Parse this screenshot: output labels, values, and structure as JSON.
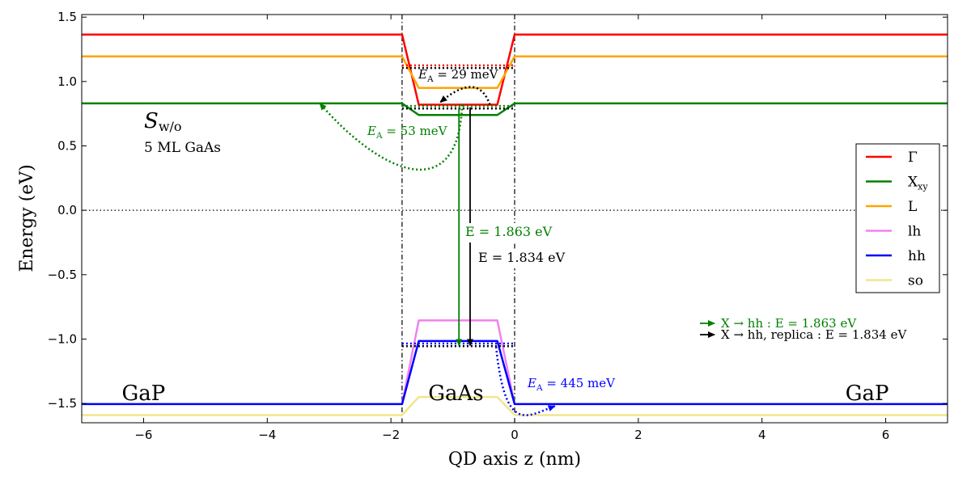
{
  "chart_data": {
    "type": "line",
    "title": "",
    "xlabel": "QD axis z (nm)",
    "ylabel": "Energy (eV)",
    "xlim": [
      -7,
      7
    ],
    "ylim": [
      -1.65,
      1.52
    ],
    "xticks": [
      -6,
      -4,
      -2,
      0,
      2,
      4,
      6
    ],
    "xtick_labels": [
      "−6",
      "−4",
      "−2",
      "0",
      "2",
      "4",
      "6"
    ],
    "yticks": [
      1.5,
      1.0,
      0.5,
      0.0,
      -0.5,
      -1.0,
      -1.5
    ],
    "ytick_labels": [
      "1.5",
      "1.0",
      "0.5",
      "0.0",
      "−0.5",
      "−1.0",
      "−1.5"
    ],
    "grid": false,
    "legend_position": "right",
    "series": [
      {
        "name": "Γ",
        "color": "#ff0000",
        "x": [
          -7,
          -1.82,
          -1.55,
          -0.28,
          0,
          7
        ],
        "y": [
          1.365,
          1.365,
          0.82,
          0.82,
          1.365,
          1.365
        ]
      },
      {
        "name": "Xₓᵧ",
        "legend_main": "X",
        "legend_sub": "xy",
        "color": "#008000",
        "x": [
          -7,
          -1.82,
          -1.55,
          -0.28,
          0,
          7
        ],
        "y": [
          0.83,
          0.83,
          0.74,
          0.74,
          0.83,
          0.83
        ]
      },
      {
        "name": "L",
        "color": "#ffa500",
        "x": [
          -7,
          -1.82,
          -1.55,
          -0.28,
          0,
          7
        ],
        "y": [
          1.195,
          1.195,
          0.95,
          0.95,
          1.195,
          1.195
        ]
      },
      {
        "name": "lh",
        "color": "#ee82ee",
        "x": [
          -1.82,
          -1.55,
          -0.28,
          0
        ],
        "y": [
          -1.505,
          -0.855,
          -0.855,
          -1.505
        ]
      },
      {
        "name": "hh",
        "color": "#0000ff",
        "x": [
          -7,
          -1.82,
          -1.55,
          -0.28,
          0,
          7
        ],
        "y": [
          -1.505,
          -1.505,
          -1.015,
          -1.015,
          -1.505,
          -1.505
        ]
      },
      {
        "name": "so",
        "color": "#f0e68c",
        "x": [
          -7,
          -1.82,
          -1.55,
          -0.28,
          0,
          7
        ],
        "y": [
          -1.59,
          -1.59,
          -1.45,
          -1.45,
          -1.59,
          -1.59
        ]
      }
    ],
    "reference_lines": [
      {
        "kind": "hline",
        "y": 0.0,
        "color": "#000000",
        "style": "dotted"
      },
      {
        "kind": "vline",
        "x": -1.82,
        "color": "#000000",
        "style": "dashdot"
      },
      {
        "kind": "vline",
        "x": 0.0,
        "color": "#000000",
        "style": "dashdot"
      }
    ],
    "levels": [
      {
        "color": "#ff0000",
        "x": [
          -1.82,
          0
        ],
        "y": 1.125
      },
      {
        "color": "#000000",
        "x": [
          -1.82,
          0
        ],
        "y": 1.105
      },
      {
        "color": "#008000",
        "x": [
          -1.82,
          0
        ],
        "y": 0.81
      },
      {
        "color": "#000000",
        "x": [
          -1.82,
          0
        ],
        "y": 0.79
      },
      {
        "color": "#0000ff",
        "x": [
          -1.82,
          0
        ],
        "y": -1.035
      },
      {
        "color": "#000000",
        "x": [
          -1.82,
          0
        ],
        "y": -1.055
      }
    ],
    "transitions": [
      {
        "color": "#008000",
        "x": -0.9,
        "y_from": 0.8,
        "y_to": -1.05
      },
      {
        "color": "#000000",
        "x": -0.72,
        "y_from": 0.8,
        "y_to": -1.05
      }
    ],
    "activation_paths": [
      {
        "color": "#000000",
        "points": [
          [
            -0.4,
            0.82
          ],
          [
            -0.55,
            1.02
          ],
          [
            -0.85,
            0.98
          ],
          [
            -1.2,
            0.84
          ]
        ],
        "arrow": "end"
      },
      {
        "color": "#008000",
        "points": [
          [
            -0.85,
            0.82
          ],
          [
            -0.9,
            0.05
          ],
          [
            -2.1,
            0.25
          ],
          [
            -3.15,
            0.83
          ]
        ],
        "arrow": "end"
      },
      {
        "color": "#0000ff",
        "points": [
          [
            -0.3,
            -1.06
          ],
          [
            -0.15,
            -1.75
          ],
          [
            0.2,
            -1.6
          ],
          [
            0.65,
            -1.52
          ]
        ],
        "arrow": "end"
      }
    ],
    "annotations": {
      "gap_left": {
        "text": "GaP",
        "x": -6.0,
        "y": -1.36
      },
      "gaas": {
        "text": "GaAs",
        "x": -0.95,
        "y": -1.36
      },
      "gap_right": {
        "text": "GaP",
        "x": 5.7,
        "y": -1.36
      },
      "sample_main": "S",
      "sample_sub": "w/o",
      "sample_desc": "5 ML GaAs",
      "ea_29": {
        "prefix": "E",
        "sub": "A",
        "value": " = 29 meV",
        "color": "#000000"
      },
      "ea_53": {
        "prefix": "E",
        "sub": "A",
        "value": " = 53 meV",
        "color": "#008000"
      },
      "ea_445": {
        "prefix": "E",
        "sub": "A",
        "value": " = 445 meV",
        "color": "#0000ff"
      },
      "e_green": {
        "text": "E = 1.863 eV",
        "color": "#008000"
      },
      "e_black": {
        "text": "E = 1.834 eV",
        "color": "#000000"
      },
      "trans_legend_1": {
        "text": "X → hh : E = 1.863 eV",
        "color": "#008000"
      },
      "trans_legend_2": {
        "text": "X → hh, replica : E = 1.834 eV",
        "color": "#000000"
      }
    }
  }
}
